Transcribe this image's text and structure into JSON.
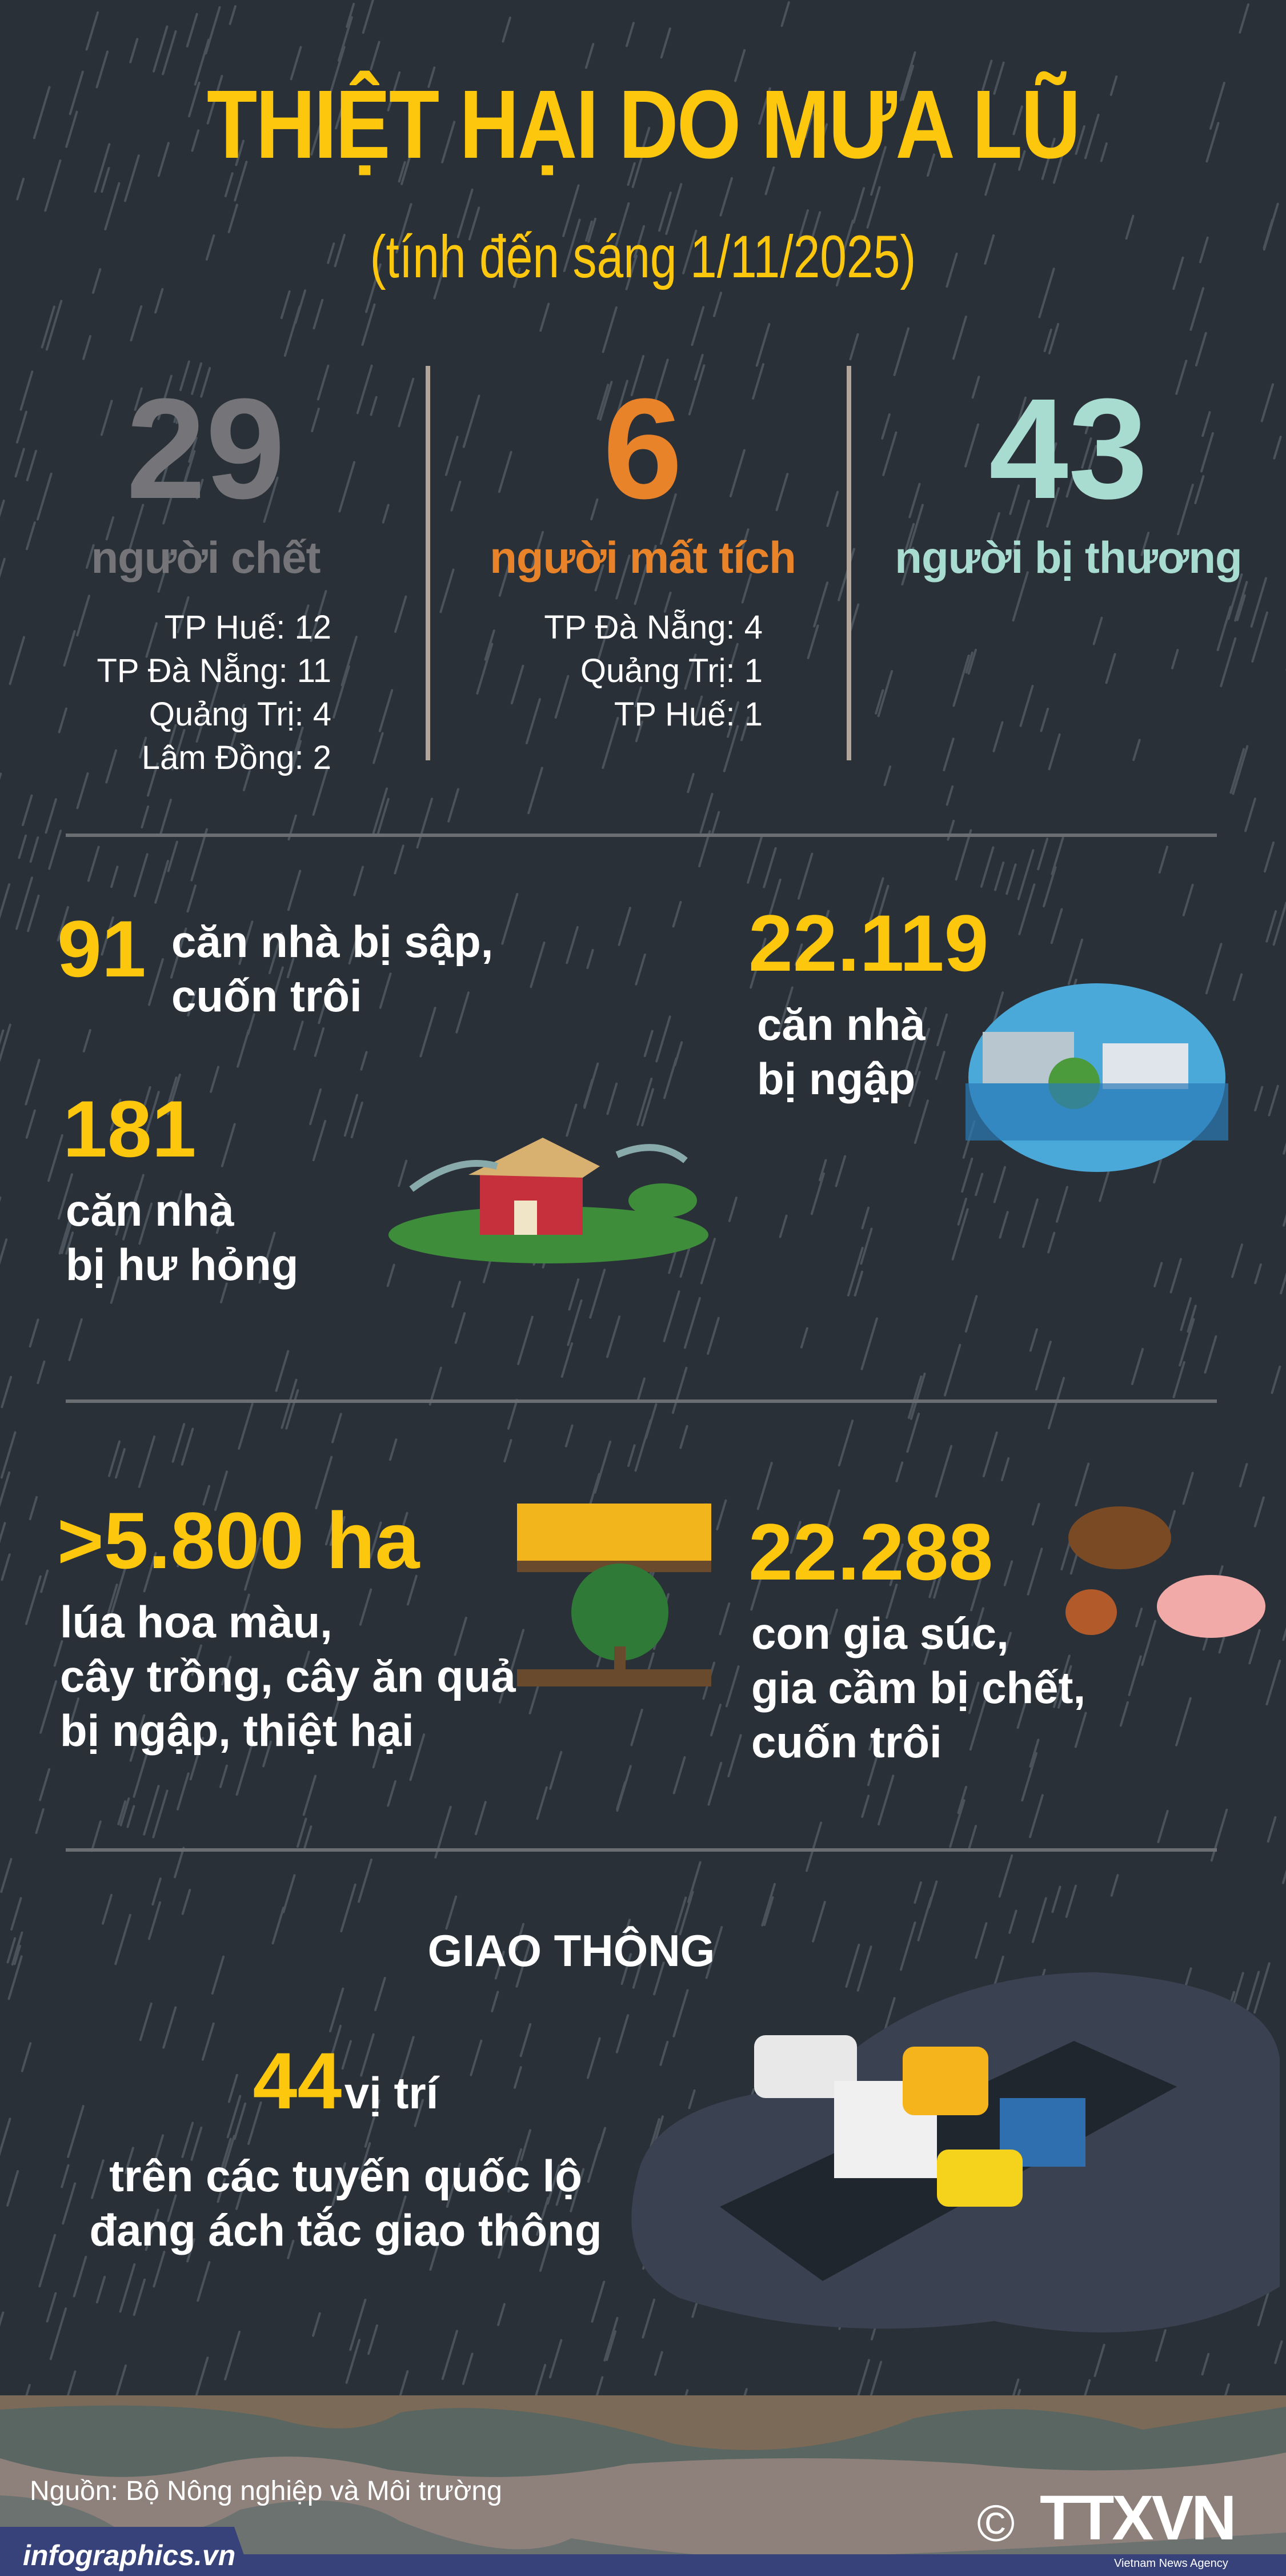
{
  "header": {
    "title": "THIỆT HẠI DO MƯA LŨ",
    "subtitle": "(tính đến sáng 1/11/2025)"
  },
  "casualties": [
    {
      "value": "29",
      "label": "người chết",
      "color": "#757579",
      "breakdown": [
        "TP Huế: 12",
        "TP Đà Nẵng: 11",
        "Quảng Trị: 4",
        "Lâm Đồng: 2"
      ]
    },
    {
      "value": "6",
      "label": "người mất tích",
      "color": "#e8832a",
      "breakdown": [
        "TP Đà Nẵng: 4",
        "Quảng Trị: 1",
        "TP Huế: 1"
      ]
    },
    {
      "value": "43",
      "label": "người bị thương",
      "color": "#a8dcd1",
      "breakdown": []
    }
  ],
  "houses": {
    "collapsed": {
      "value": "91",
      "text1": "căn nhà bị sập,",
      "text2": "cuốn trôi"
    },
    "damaged": {
      "value": "181",
      "text1": "căn nhà",
      "text2": "bị hư hỏng"
    },
    "flooded": {
      "value": "22.119",
      "text1": "căn nhà",
      "text2": "bị ngập"
    }
  },
  "agriculture": {
    "crops": {
      "value": ">5.800 ha",
      "lines": [
        "lúa hoa màu,",
        "cây trồng, cây ăn quả",
        "bị ngập, thiệt hại"
      ]
    },
    "livestock": {
      "value": "22.288",
      "lines": [
        "con gia súc,",
        "gia cầm bị chết,",
        "cuốn trôi"
      ]
    }
  },
  "traffic": {
    "heading": "GIAO THÔNG",
    "value": "44",
    "unit": "vị trí",
    "line1": "trên các tuyến quốc lộ",
    "line2": "đang ách tắc giao thông"
  },
  "footer": {
    "source": "Nguồn: Bộ Nông nghiệp và Môi trường",
    "site": "infographics.vn",
    "logo": "TTXVN",
    "logo_sub": "Vietnam News Agency",
    "copyright": "©"
  },
  "colors": {
    "background": "#2a3038",
    "accent": "#fdc70d",
    "footer_band": "#38427a"
  }
}
